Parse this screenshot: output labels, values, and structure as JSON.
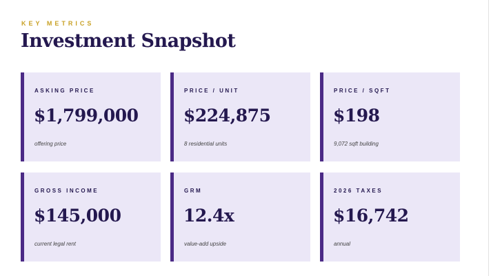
{
  "header": {
    "eyebrow": "KEY METRICS",
    "title": "Investment Snapshot"
  },
  "cards": [
    {
      "label": "ASKING PRICE",
      "value": "$1,799,000",
      "note": "offering price"
    },
    {
      "label": "PRICE / UNIT",
      "value": "$224,875",
      "note": "8 residential units"
    },
    {
      "label": "PRICE / SQFT",
      "value": "$198",
      "note": "9,072 sqft building"
    },
    {
      "label": "GROSS INCOME",
      "value": "$145,000",
      "note": "current legal rent"
    },
    {
      "label": "GRM",
      "value": "12.4x",
      "note": "value-add upside"
    },
    {
      "label": "2026 TAXES",
      "value": "$16,742",
      "note": "annual"
    }
  ]
}
